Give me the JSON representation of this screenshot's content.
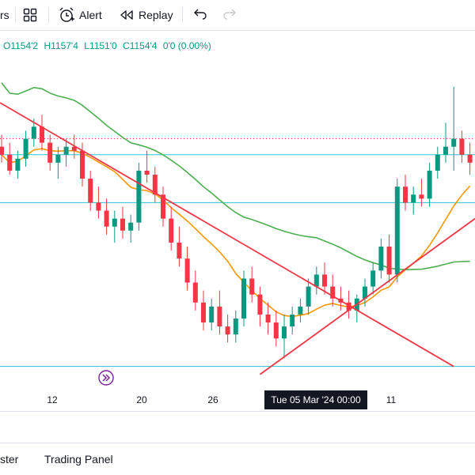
{
  "toolbar": {
    "cut_label": "rs",
    "alert_label": "Alert",
    "replay_label": "Replay"
  },
  "legend": {
    "open": "O1154'2",
    "high": "H1157'4",
    "low": "L1151'0",
    "close": "C1154'4",
    "change": "0'0 (0.00%)"
  },
  "x_axis": {
    "labels": [
      "12",
      "20",
      "26",
      "11"
    ],
    "crosshair_date": "Tue 05 Mar '24   00:00"
  },
  "bottom": {
    "tab1": "ster",
    "tab2": "Trading Panel"
  },
  "colors": {
    "up": "#089981",
    "down": "#f23645",
    "ma_fast": "#ff9800",
    "ma_slow": "#4caf50",
    "trendline": "#f23645",
    "hline": "#26c6da"
  },
  "chart_data": {
    "type": "candlestick",
    "candles": [
      [
        1166,
        1169,
        1162,
        1164
      ],
      [
        1164,
        1167,
        1159,
        1160
      ],
      [
        1160,
        1165,
        1158,
        1163
      ],
      [
        1163,
        1170,
        1161,
        1168
      ],
      [
        1168,
        1173,
        1166,
        1171
      ],
      [
        1171,
        1174,
        1165,
        1167
      ],
      [
        1167,
        1169,
        1160,
        1162
      ],
      [
        1162,
        1166,
        1158,
        1164
      ],
      [
        1164,
        1168,
        1161,
        1166
      ],
      [
        1166,
        1169,
        1163,
        1165
      ],
      [
        1165,
        1167,
        1156,
        1158
      ],
      [
        1158,
        1160,
        1150,
        1152
      ],
      [
        1152,
        1156,
        1148,
        1150
      ],
      [
        1150,
        1153,
        1144,
        1146
      ],
      [
        1146,
        1150,
        1142,
        1148
      ],
      [
        1148,
        1151,
        1143,
        1145
      ],
      [
        1145,
        1149,
        1142,
        1147
      ],
      [
        1147,
        1162,
        1145,
        1160
      ],
      [
        1160,
        1165,
        1157,
        1159
      ],
      [
        1159,
        1161,
        1152,
        1154
      ],
      [
        1154,
        1156,
        1146,
        1148
      ],
      [
        1148,
        1151,
        1140,
        1142
      ],
      [
        1142,
        1146,
        1136,
        1138
      ],
      [
        1138,
        1141,
        1130,
        1132
      ],
      [
        1132,
        1135,
        1125,
        1127
      ],
      [
        1127,
        1130,
        1120,
        1122
      ],
      [
        1122,
        1128,
        1120,
        1126
      ],
      [
        1126,
        1130,
        1119,
        1121
      ],
      [
        1121,
        1124,
        1117,
        1119
      ],
      [
        1119,
        1125,
        1117,
        1123
      ],
      [
        1123,
        1135,
        1121,
        1133
      ],
      [
        1133,
        1136,
        1127,
        1129
      ],
      [
        1129,
        1131,
        1121,
        1124
      ],
      [
        1124,
        1127,
        1119,
        1122
      ],
      [
        1122,
        1125,
        1116,
        1118
      ],
      [
        1118,
        1124,
        1113,
        1121
      ],
      [
        1121,
        1126,
        1119,
        1124
      ],
      [
        1124,
        1128,
        1122,
        1126
      ],
      [
        1126,
        1133,
        1124,
        1131
      ],
      [
        1131,
        1136,
        1129,
        1134
      ],
      [
        1134,
        1137,
        1129,
        1131
      ],
      [
        1131,
        1134,
        1126,
        1128
      ],
      [
        1128,
        1131,
        1125,
        1127
      ],
      [
        1127,
        1130,
        1123,
        1125
      ],
      [
        1125,
        1129,
        1122,
        1128
      ],
      [
        1128,
        1133,
        1126,
        1131
      ],
      [
        1131,
        1137,
        1129,
        1135
      ],
      [
        1135,
        1143,
        1133,
        1141
      ],
      [
        1141,
        1144,
        1132,
        1134
      ],
      [
        1134,
        1158,
        1132,
        1156
      ],
      [
        1156,
        1159,
        1150,
        1152
      ],
      [
        1152,
        1156,
        1149,
        1154
      ],
      [
        1154,
        1158,
        1151,
        1153
      ],
      [
        1153,
        1162,
        1151,
        1160
      ],
      [
        1160,
        1166,
        1158,
        1164
      ],
      [
        1164,
        1172,
        1162,
        1166
      ],
      [
        1166,
        1181,
        1160,
        1168
      ],
      [
        1168,
        1170,
        1162,
        1164
      ],
      [
        1164,
        1167,
        1159,
        1162
      ]
    ],
    "moving_averages": [
      {
        "name": "",
        "color": "#ff9800"
      },
      {
        "name": "",
        "color": "#4caf50"
      }
    ],
    "horizontal_lines": [
      1168,
      1164,
      1152,
      1111
    ],
    "resistance_line": 1168,
    "support_line": 1111
  }
}
